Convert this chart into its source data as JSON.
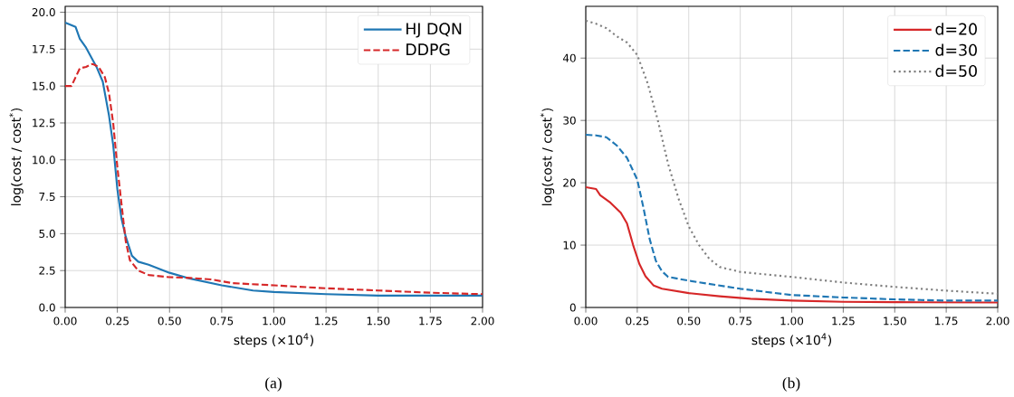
{
  "chart_data": [
    {
      "type": "line",
      "xlabel": "steps (×10$^{4}$)",
      "ylabel": "log(cost / cost$^{*}$)",
      "annotations": [
        "(a)"
      ],
      "xlim": [
        0,
        2
      ],
      "ylim": [
        0,
        20.4
      ],
      "xticks": [
        {
          "value": 0,
          "label": "0.00"
        },
        {
          "value": 0.25,
          "label": "0.25"
        },
        {
          "value": 0.5,
          "label": "0.50"
        },
        {
          "value": 0.75,
          "label": "0.75"
        },
        {
          "value": 1,
          "label": "1.00"
        },
        {
          "value": 1.25,
          "label": "1.25"
        },
        {
          "value": 1.5,
          "label": "1.50"
        },
        {
          "value": 1.75,
          "label": "1.75"
        },
        {
          "value": 2,
          "label": "2.00"
        }
      ],
      "yticks": [
        {
          "value": 0,
          "label": "0.0"
        },
        2.5,
        {
          "value": 5,
          "label": "5.0"
        },
        7.5,
        {
          "value": 10,
          "label": "10.0"
        },
        12.5,
        {
          "value": 15,
          "label": "15.0"
        },
        17.5,
        {
          "value": 20,
          "label": "20.0"
        }
      ],
      "grid": true,
      "legend": "top right",
      "series": [
        {
          "name": "HJ DQN",
          "color": "#1f77b4",
          "line_style": "solid",
          "x": [
            0,
            0.05,
            0.07,
            0.1,
            0.15,
            0.18,
            0.21,
            0.23,
            0.25,
            0.27,
            0.29,
            0.32,
            0.35,
            0.4,
            0.5,
            0.6,
            0.75,
            0.9,
            1.0,
            1.25,
            1.5,
            1.75,
            2.0
          ],
          "values": [
            19.3,
            19.0,
            18.2,
            17.6,
            16.3,
            15.3,
            13.0,
            11.0,
            8.0,
            6.0,
            4.8,
            3.5,
            3.1,
            2.9,
            2.35,
            1.95,
            1.5,
            1.15,
            1.05,
            0.9,
            0.8,
            0.8,
            0.8
          ]
        },
        {
          "name": "DDPG",
          "color": "#d62728",
          "line_style": "dashed",
          "x": [
            0,
            0.03,
            0.05,
            0.07,
            0.1,
            0.13,
            0.16,
            0.19,
            0.21,
            0.23,
            0.25,
            0.27,
            0.29,
            0.31,
            0.35,
            0.4,
            0.5,
            0.6,
            0.7,
            0.8,
            1.0,
            1.25,
            1.5,
            1.75,
            2.0
          ],
          "values": [
            15.0,
            15.0,
            15.6,
            16.2,
            16.3,
            16.5,
            16.3,
            15.6,
            14.5,
            12.5,
            9.5,
            7.0,
            4.5,
            3.2,
            2.5,
            2.2,
            2.05,
            2.0,
            1.9,
            1.65,
            1.5,
            1.3,
            1.15,
            1.0,
            0.9
          ]
        }
      ]
    },
    {
      "type": "line",
      "xlabel": "steps (×10$^{4}$)",
      "ylabel": "log(cost / cost$^{*}$)",
      "annotations": [
        "(b)"
      ],
      "xlim": [
        0,
        2
      ],
      "ylim": [
        0,
        48.3
      ],
      "xticks": [
        {
          "value": 0,
          "label": "0.00"
        },
        {
          "value": 0.25,
          "label": "0.25"
        },
        {
          "value": 0.5,
          "label": "0.50"
        },
        {
          "value": 0.75,
          "label": "0.75"
        },
        {
          "value": 1,
          "label": "1.00"
        },
        {
          "value": 1.25,
          "label": "1.25"
        },
        {
          "value": 1.5,
          "label": "1.50"
        },
        {
          "value": 1.75,
          "label": "1.75"
        },
        {
          "value": 2,
          "label": "2.00"
        }
      ],
      "yticks": [
        0,
        10,
        20,
        30,
        40
      ],
      "grid": true,
      "legend": "top right",
      "series": [
        {
          "name": "d=20",
          "color": "#d62728",
          "line_style": "solid",
          "x": [
            0,
            0.05,
            0.07,
            0.12,
            0.17,
            0.2,
            0.23,
            0.26,
            0.29,
            0.33,
            0.37,
            0.5,
            0.65,
            0.8,
            1.0,
            1.25,
            1.5,
            2.0
          ],
          "values": [
            19.3,
            19.0,
            18.0,
            16.8,
            15.2,
            13.5,
            10.0,
            7.0,
            5.0,
            3.5,
            3.0,
            2.3,
            1.8,
            1.4,
            1.1,
            0.9,
            0.85,
            0.8
          ]
        },
        {
          "name": "d=30",
          "color": "#1f77b4",
          "line_style": "dashed",
          "x": [
            0,
            0.05,
            0.1,
            0.15,
            0.2,
            0.25,
            0.28,
            0.31,
            0.34,
            0.37,
            0.4,
            0.5,
            0.75,
            1.0,
            1.25,
            1.5,
            1.75,
            2.0
          ],
          "values": [
            27.7,
            27.6,
            27.3,
            26.0,
            24.0,
            20.5,
            16.0,
            11.0,
            7.5,
            5.8,
            4.9,
            4.3,
            3.0,
            2.0,
            1.6,
            1.3,
            1.1,
            1.1
          ]
        },
        {
          "name": "d=50",
          "color": "#7f7f7f",
          "line_style": "dotted",
          "x": [
            0,
            0.05,
            0.1,
            0.15,
            0.2,
            0.25,
            0.3,
            0.35,
            0.4,
            0.45,
            0.5,
            0.55,
            0.6,
            0.65,
            0.75,
            1.0,
            1.25,
            1.5,
            1.75,
            2.0
          ],
          "values": [
            46,
            45.5,
            44.8,
            43.5,
            42.5,
            40.5,
            36,
            30,
            23,
            17.5,
            13,
            10,
            7.8,
            6.5,
            5.7,
            4.9,
            4.0,
            3.3,
            2.7,
            2.2
          ]
        }
      ]
    }
  ]
}
